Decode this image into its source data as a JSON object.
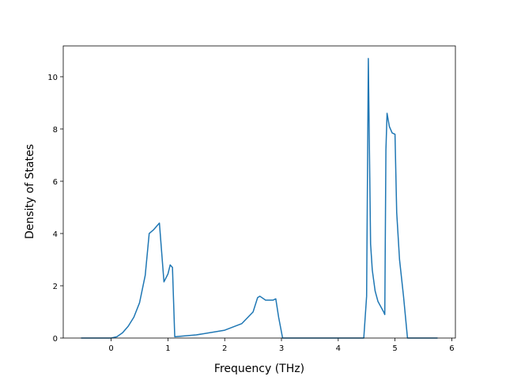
{
  "chart_data": {
    "type": "line",
    "x_label": "Frequency (THz)",
    "y_label": "Density of States",
    "x": [
      -0.53,
      0,
      0.1,
      0.2,
      0.3,
      0.4,
      0.5,
      0.6,
      0.67,
      0.75,
      0.85,
      0.93,
      1.0,
      1.04,
      1.08,
      1.12,
      1.5,
      2.0,
      2.3,
      2.5,
      2.58,
      2.62,
      2.72,
      2.85,
      2.9,
      2.95,
      3.02,
      4.45,
      4.5,
      4.53,
      4.57,
      4.6,
      4.65,
      4.7,
      4.8,
      4.82,
      4.84,
      4.86,
      4.9,
      4.95,
      5.0,
      5.03,
      5.08,
      5.15,
      5.22,
      5.75
    ],
    "series": [
      {
        "color": "#1f77b4",
        "values": [
          0,
          0,
          0.05,
          0.2,
          0.45,
          0.8,
          1.35,
          2.4,
          4.0,
          4.15,
          4.4,
          2.15,
          2.45,
          2.8,
          2.7,
          0.05,
          0.12,
          0.3,
          0.55,
          1.0,
          1.55,
          1.6,
          1.45,
          1.45,
          1.5,
          0.8,
          0,
          0,
          1.6,
          10.7,
          3.6,
          2.6,
          1.8,
          1.4,
          1.0,
          0.9,
          7.2,
          8.6,
          8.1,
          7.85,
          7.8,
          4.8,
          3.0,
          1.6,
          0,
          0
        ]
      }
    ],
    "xlim": [
      -0.844,
      6.064
    ],
    "ylim": [
      0,
      11.18
    ],
    "xticks": [
      0,
      1,
      2,
      3,
      4,
      5,
      6
    ],
    "yticks": [
      0,
      2,
      4,
      6,
      8,
      10
    ]
  }
}
